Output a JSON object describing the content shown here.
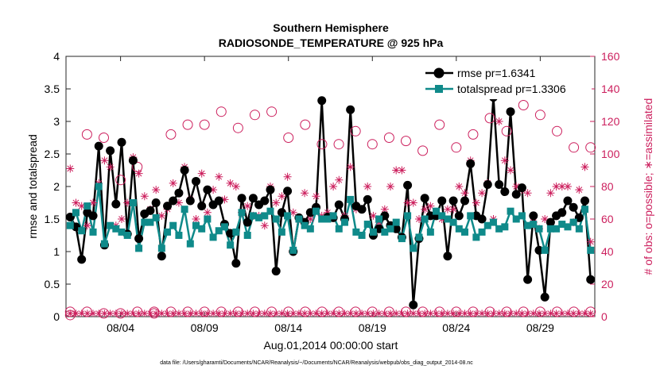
{
  "chart_data": {
    "type": "line",
    "title_line1": "Southern Hemisphere",
    "title_line2": "RADIOSONDE_TEMPERATURE @ 925 hPa",
    "xlabel": "Aug.01,2014 00:00:00 start",
    "ylabel_left": "rmse and totalspread",
    "ylabel_right": "# of obs: o=possible; ∗=assimilated",
    "footnote": "data file: /Users/gharamti/Documents/NCAR/Reanalysis/~/Documents/NCAR/Reanalysis/webpub/obs_diag_output_2014-08.nc",
    "x_tick_labels": [
      "08/04",
      "08/09",
      "08/14",
      "08/19",
      "08/24",
      "08/29"
    ],
    "x_tick_days": [
      4,
      9,
      14,
      19,
      24,
      29
    ],
    "xlim": [
      0.75,
      32.25
    ],
    "y_left_ticks": [
      "0",
      "0.5",
      "1",
      "1.5",
      "2",
      "2.5",
      "3",
      "3.5",
      "4"
    ],
    "ylim_left": [
      0,
      4
    ],
    "y_right_ticks": [
      "0",
      "20",
      "40",
      "60",
      "80",
      "100",
      "120",
      "140",
      "160"
    ],
    "ylim_right": [
      0,
      160
    ],
    "colors": {
      "rmse": "#000000",
      "spread": "#0f8a8a",
      "obs": "#cc1f5d",
      "axis": "#262626"
    },
    "series": [
      {
        "name": "rmse",
        "legend": "rmse pr=1.6341",
        "values": [
          1.53,
          1.38,
          0.88,
          1.6,
          1.55,
          2.62,
          1.1,
          2.55,
          1.73,
          2.68,
          1.27,
          2.4,
          1.2,
          1.58,
          1.63,
          1.75,
          0.93,
          1.7,
          1.78,
          1.9,
          2.25,
          1.78,
          2.08,
          1.7,
          1.95,
          1.72,
          1.78,
          1.42,
          1.28,
          0.82,
          1.82,
          1.45,
          1.82,
          1.72,
          1.78,
          1.95,
          0.7,
          1.6,
          1.93,
          1.0,
          1.52,
          1.45,
          1.6,
          1.68,
          3.32,
          1.53,
          1.52,
          1.72,
          1.5,
          3.18,
          1.7,
          1.65,
          1.8,
          1.25,
          1.35,
          1.55,
          1.4,
          1.35,
          1.22,
          2.02,
          0.18,
          1.2,
          1.82,
          1.55,
          1.55,
          1.78,
          0.93,
          1.78,
          1.55,
          1.78,
          2.35,
          1.55,
          1.5,
          2.03,
          3.37,
          2.03,
          1.92,
          3.15,
          1.88,
          1.98,
          0.57,
          1.55,
          1.02,
          0.3,
          1.45,
          1.55,
          1.6,
          1.78,
          1.68,
          1.52,
          1.78,
          0.57
        ],
        "marker": "circle"
      },
      {
        "name": "totalspread",
        "legend": "totalspread pr=1.3306",
        "values": [
          1.4,
          1.6,
          1.32,
          1.7,
          1.3,
          2.0,
          1.12,
          1.4,
          1.35,
          1.3,
          1.25,
          1.75,
          1.05,
          1.45,
          1.45,
          1.52,
          1.05,
          1.3,
          1.4,
          1.25,
          1.65,
          1.12,
          1.4,
          1.35,
          1.5,
          1.22,
          1.32,
          1.38,
          1.1,
          1.3,
          1.6,
          1.25,
          1.55,
          1.52,
          1.55,
          1.62,
          1.5,
          1.3,
          1.55,
          1.02,
          1.5,
          1.4,
          1.35,
          1.62,
          1.5,
          1.5,
          1.55,
          1.35,
          1.45,
          1.8,
          1.3,
          1.25,
          1.42,
          1.3,
          1.5,
          1.3,
          1.35,
          1.45,
          1.2,
          1.55,
          1.05,
          1.22,
          1.5,
          1.3,
          1.62,
          1.55,
          1.5,
          1.45,
          1.35,
          1.3,
          1.55,
          1.22,
          1.3,
          1.4,
          1.45,
          1.35,
          1.38,
          1.62,
          1.5,
          1.55,
          1.4,
          1.42,
          1.35,
          1.02,
          1.35,
          1.35,
          1.42,
          1.38,
          1.45,
          1.35,
          1.65,
          1.02
        ],
        "marker": "square"
      },
      {
        "name": "obs_possible",
        "axis": "right",
        "day_values": [
          [
            1,
            1,
            3
          ],
          [
            2,
            112,
            3
          ],
          [
            3,
            110,
            2
          ],
          [
            4,
            84,
            2
          ],
          [
            5,
            92,
            3
          ],
          [
            6,
            3,
            2
          ],
          [
            7,
            112,
            3
          ],
          [
            8,
            118,
            3
          ],
          [
            9,
            118,
            3
          ],
          [
            10,
            126,
            3
          ],
          [
            11,
            116,
            3
          ],
          [
            12,
            124,
            3
          ],
          [
            13,
            126,
            3
          ],
          [
            14,
            110,
            3
          ],
          [
            15,
            118,
            3
          ],
          [
            16,
            106,
            3
          ],
          [
            17,
            106,
            3
          ],
          [
            18,
            114,
            3
          ],
          [
            19,
            106,
            3
          ],
          [
            20,
            110,
            3
          ],
          [
            21,
            108,
            3
          ],
          [
            22,
            102,
            3
          ],
          [
            23,
            118,
            3
          ],
          [
            24,
            104,
            3
          ],
          [
            25,
            112,
            3
          ],
          [
            26,
            122,
            3
          ],
          [
            27,
            114,
            3
          ],
          [
            28,
            130,
            3
          ],
          [
            29,
            124,
            3
          ],
          [
            30,
            114,
            3
          ],
          [
            31,
            104,
            3
          ],
          [
            32,
            104,
            3
          ]
        ],
        "marker": "open-circle"
      },
      {
        "name": "obs_assimilated",
        "axis": "right",
        "values": [
          91,
          70,
          68,
          56,
          70,
          82,
          96,
          92,
          56,
          60,
          70,
          98,
          88,
          74,
          66,
          78,
          62,
          66,
          82,
          70,
          92,
          72,
          60,
          88,
          64,
          78,
          86,
          72,
          82,
          80,
          64,
          68,
          62,
          62,
          56,
          80,
          70,
          74,
          86,
          64,
          60,
          76,
          60,
          74,
          62,
          64,
          80,
          84,
          62,
          92,
          66,
          66,
          80,
          62,
          58,
          66,
          80,
          90,
          90,
          70,
          70,
          60,
          66,
          68,
          62,
          60,
          66,
          66,
          80,
          76,
          96,
          70,
          76,
          82,
          60,
          120,
          96,
          90,
          80,
          78,
          76,
          58,
          54,
          60,
          76,
          80,
          80,
          80,
          58,
          78,
          92,
          46
        ],
        "marker": "asterisk"
      }
    ]
  }
}
